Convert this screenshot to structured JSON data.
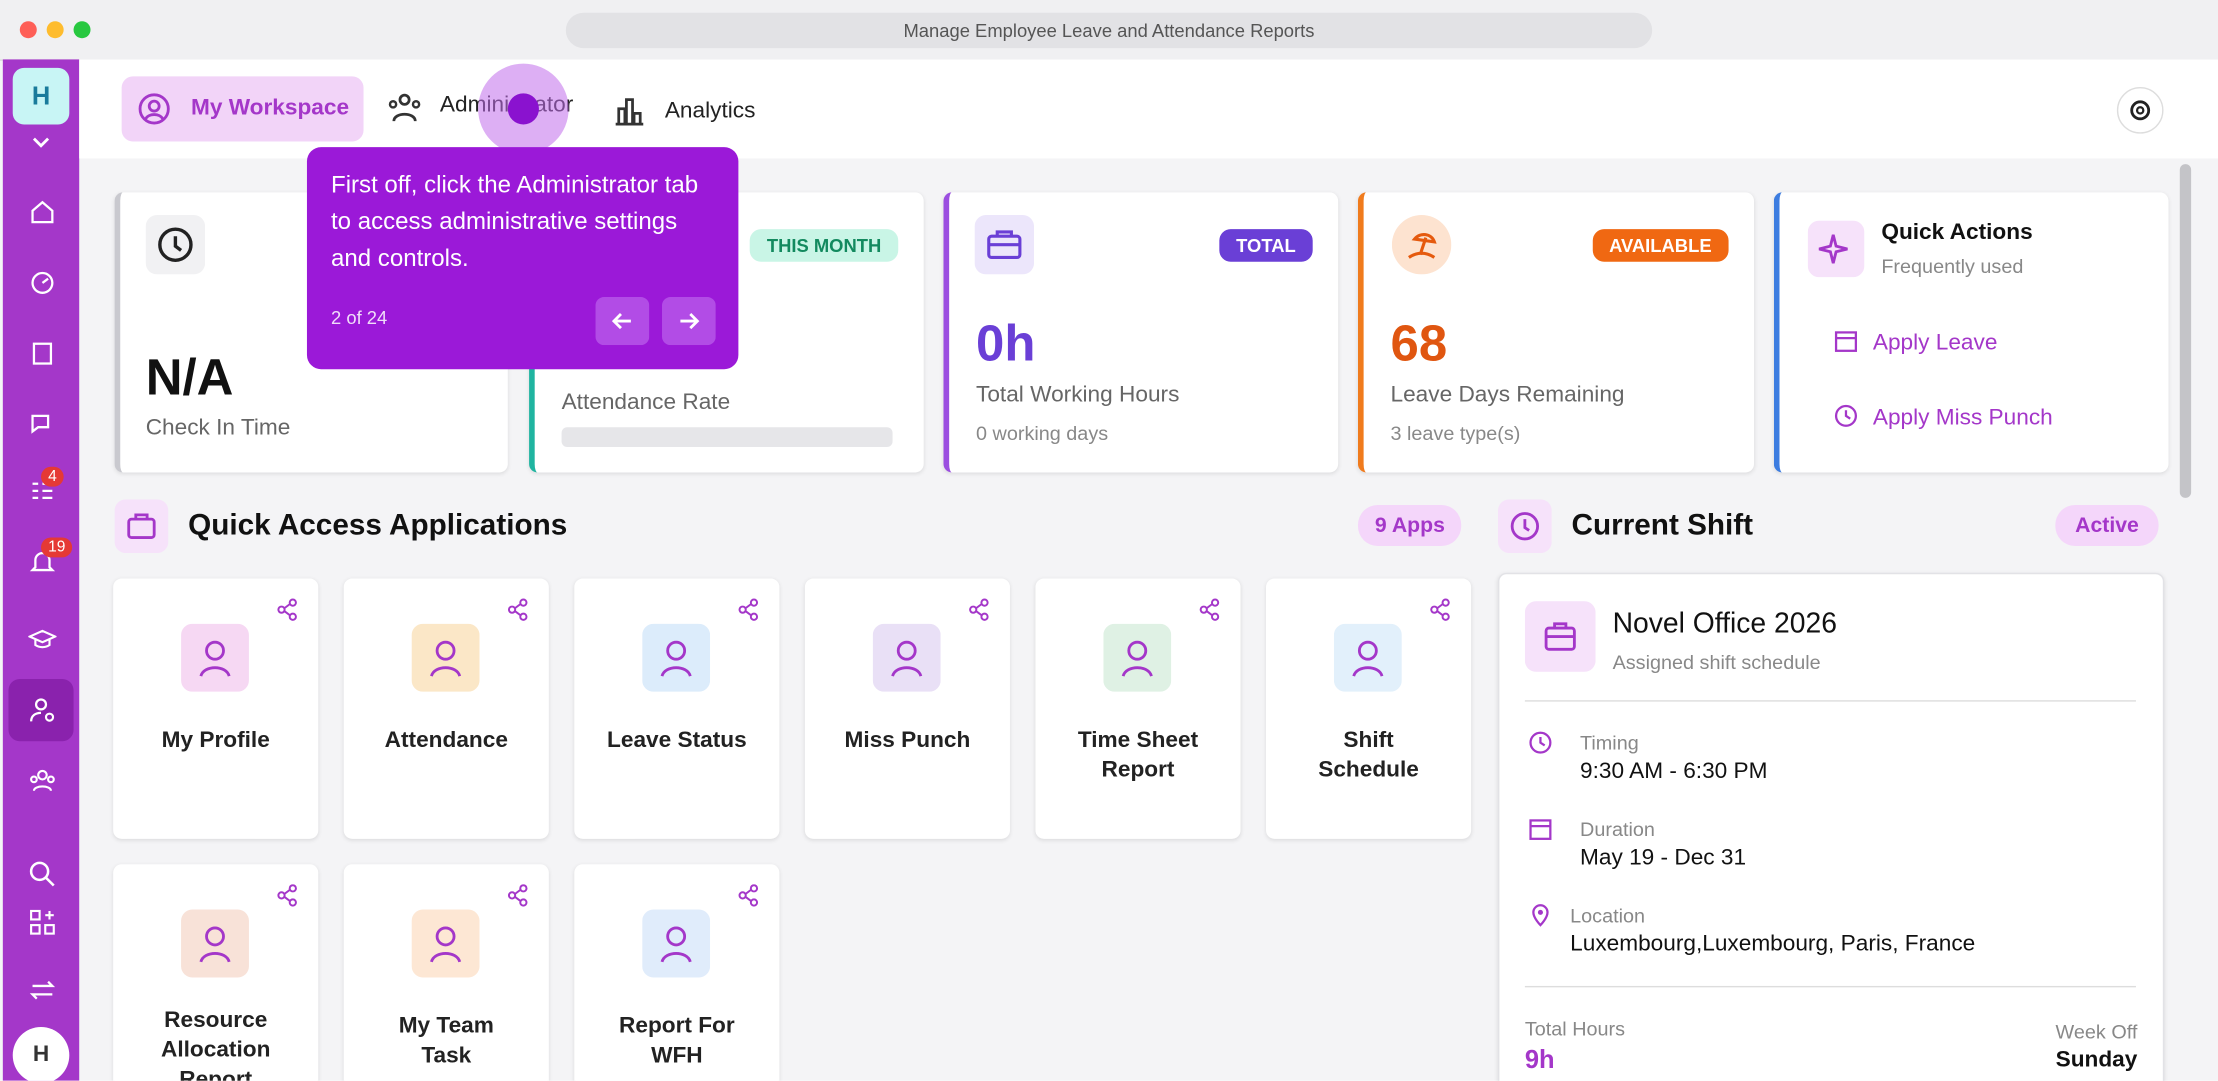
{
  "window": {
    "title": "Manage Employee Leave and Attendance Reports"
  },
  "sidebar": {
    "workspace_initial": "H",
    "tasks_badge": "4",
    "notifications_badge": "19",
    "user_initial": "H"
  },
  "tabs": [
    "My Workspace",
    "Administrator",
    "Analytics"
  ],
  "tooltip": {
    "text": "First off, click the Administrator tab to access administrative settings and controls.",
    "step": "2 of 24"
  },
  "stats": [
    {
      "value": "N/A",
      "label": "Check In Time"
    },
    {
      "badge": "THIS MONTH",
      "label": "Attendance Rate"
    },
    {
      "badge": "TOTAL",
      "value": "0h",
      "label": "Total Working Hours",
      "sub": "0 working days"
    },
    {
      "badge": "AVAILABLE",
      "value": "68",
      "label": "Leave Days Remaining",
      "sub": "3 leave type(s)"
    }
  ],
  "quick_actions": {
    "title": "Quick Actions",
    "subtitle": "Frequently used",
    "items": [
      "Apply Leave",
      "Apply Miss Punch"
    ]
  },
  "apps": {
    "title": "Quick Access Applications",
    "count": "9 Apps",
    "items": [
      "My Profile",
      "Attendance",
      "Leave Status",
      "Miss Punch",
      "Time Sheet Report",
      "Shift Schedule",
      "Resource Allocation Report",
      "My Team Task",
      "Report For WFH"
    ]
  },
  "shift": {
    "title": "Current Shift",
    "status": "Active",
    "name": "Novel Office 2026",
    "subtitle": "Assigned shift schedule",
    "fields": [
      {
        "label": "Timing",
        "value": "9:30 AM - 6:30 PM"
      },
      {
        "label": "Duration",
        "value": "May 19 - Dec 31"
      },
      {
        "label": "Location",
        "value": "Luxembourg,Luxembourg, Paris, France"
      }
    ],
    "total_hours_label": "Total Hours",
    "total_hours": "9h",
    "week_off_label": "Week Off",
    "week_off": "Sunday"
  }
}
